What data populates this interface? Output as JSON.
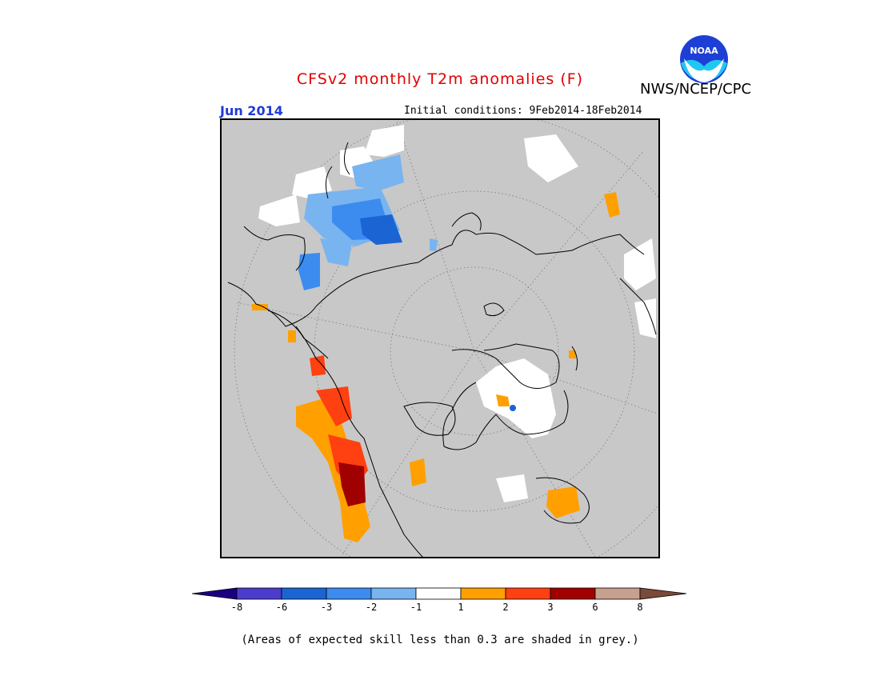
{
  "header": {
    "title": "CFSv2 monthly T2m anomalies (F)",
    "agency": "NWS/NCEP/CPC",
    "valid_month": "Jun 2014",
    "initial_conditions": "Initial conditions: 9Feb2014-18Feb2014",
    "logo_text": "NOAA"
  },
  "colors": {
    "title": "#e00000",
    "valid_month": "#1f3bd6",
    "skill_grey": "#c8c8c8"
  },
  "legend": {
    "tick_labels": [
      "-8",
      "-6",
      "-3",
      "-2",
      "-1",
      "1",
      "2",
      "3",
      "6",
      "8"
    ],
    "bins": [
      {
        "label": "< -8",
        "color": "#1a0080"
      },
      {
        "label": "-8 to -6",
        "color": "#4b3ccc"
      },
      {
        "label": "-6 to -3",
        "color": "#1a64d4"
      },
      {
        "label": "-3 to -2",
        "color": "#3c8cf0"
      },
      {
        "label": "-2 to -1",
        "color": "#78b4f0"
      },
      {
        "label": "-1 to 1",
        "color": "#ffffff"
      },
      {
        "label": "1 to 2",
        "color": "#ffa000"
      },
      {
        "label": "2 to 3",
        "color": "#ff4010"
      },
      {
        "label": "3 to 6",
        "color": "#a00000"
      },
      {
        "label": "6 to 8",
        "color": "#c8a090"
      },
      {
        "label": "> 8",
        "color": "#7a4a3a"
      }
    ]
  },
  "footnote": "(Areas of expected skill less than 0.3 are shaded in grey.)"
}
